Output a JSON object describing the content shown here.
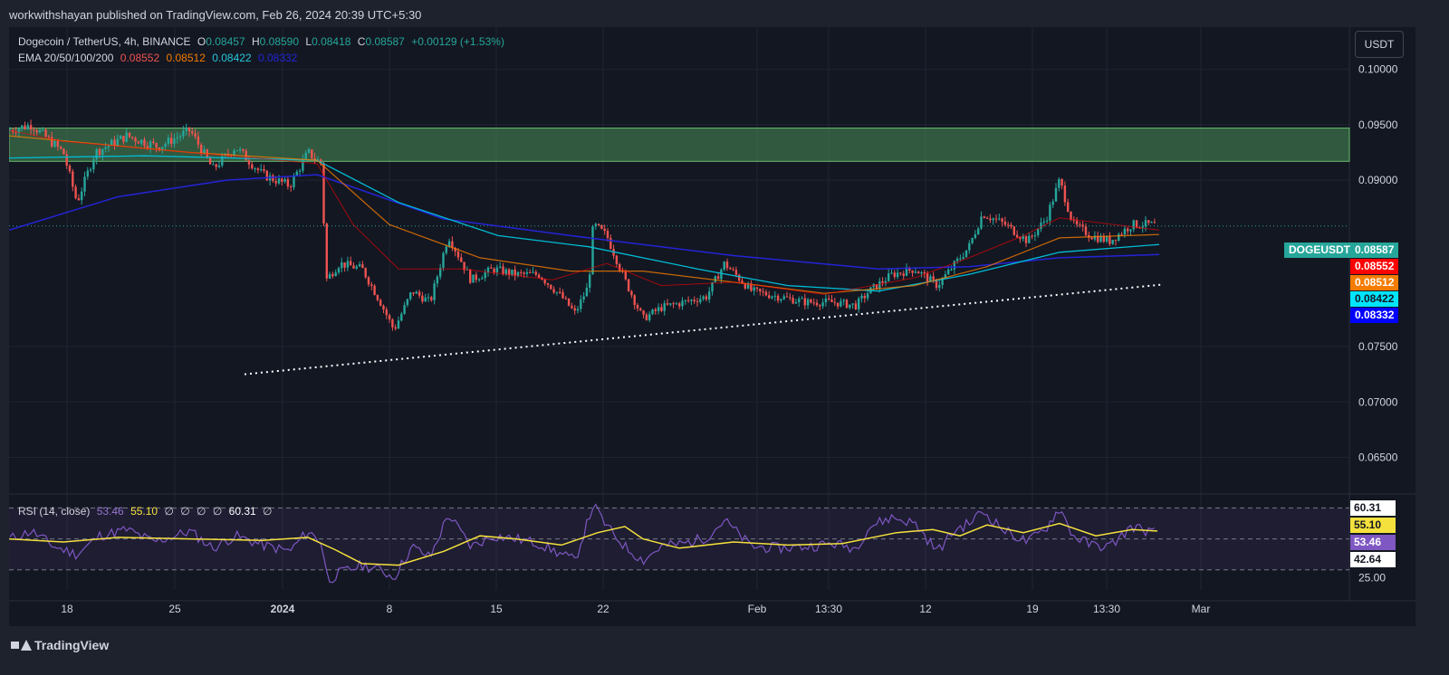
{
  "header": {
    "publisher_line": "workwithshayan published on TradingView.com, Feb 26, 2024 20:39 UTC+5:30"
  },
  "legend": {
    "symbol": "Dogecoin / TetherUS, 4h, BINANCE",
    "o_label": "O",
    "o": "0.08457",
    "h_label": "H",
    "h": "0.08590",
    "l_label": "L",
    "l": "0.08418",
    "c_label": "C",
    "c": "0.08587",
    "change": "+0.00129 (+1.53%)",
    "ema_label": "EMA 20/50/100/200",
    "ema20": "0.08552",
    "ema50": "0.08512",
    "ema100": "0.08422",
    "ema200": "0.08332"
  },
  "rsi_legend": {
    "label": "RSI (14, close)",
    "rsi": "53.46",
    "ma": "55.10",
    "nulls": [
      "∅",
      "∅",
      "∅",
      "∅"
    ],
    "upper": "60.31",
    "null_end": "∅"
  },
  "currency_button": "USDT",
  "symbol_tag": "DOGEUSDT",
  "price_tags": [
    {
      "text": "0.08587",
      "bg": "#26a69a",
      "fg": "#ffffff"
    },
    {
      "text": "0.08552",
      "bg": "#ff0000",
      "fg": "#ffffff"
    },
    {
      "text": "0.08512",
      "bg": "#f57c00",
      "fg": "#ffffff"
    },
    {
      "text": "0.08422",
      "bg": "#00e5ff",
      "fg": "#131722"
    },
    {
      "text": "0.08332",
      "bg": "#0000ff",
      "fg": "#ffffff"
    }
  ],
  "rsi_tags": [
    {
      "text": "60.31",
      "bg": "#ffffff",
      "fg": "#131722",
      "value": 60.31
    },
    {
      "text": "55.10",
      "bg": "#f5e13d",
      "fg": "#131722",
      "value": 55.1
    },
    {
      "text": "53.46",
      "bg": "#7e57c2",
      "fg": "#ffffff",
      "value": 53.46
    },
    {
      "text": "42.64",
      "bg": "#ffffff",
      "fg": "#131722",
      "value": 42.64
    }
  ],
  "footer": {
    "brand": "TradingView"
  },
  "colors": {
    "up": "#26a69a",
    "down": "#ef5350",
    "ema20": "#ff0000",
    "ema50": "#f57c00",
    "ema100": "#00bcd4",
    "ema200": "#2424d6",
    "rsi": "#7e57c2",
    "rsi_ma": "#f5e13d",
    "zone_fill": "#4a8f5a",
    "zone_border": "#66bb6a"
  },
  "chart_data": {
    "type": "candlestick",
    "timeframe": "4h",
    "price_axis_ticks": [
      "0.10000",
      "0.09500",
      "0.09000",
      "0.07500",
      "0.07000",
      "0.06500"
    ],
    "ylim": [
      0.0617,
      0.1038
    ],
    "time_axis_ticks": [
      "18",
      "25",
      "2024",
      "8",
      "15",
      "22",
      "Feb",
      "13:30",
      "12",
      "19",
      "13:30",
      "Mar"
    ],
    "price_path": [
      [
        0,
        0.0945
      ],
      [
        25,
        0.095
      ],
      [
        60,
        0.0925
      ],
      [
        75,
        0.088
      ],
      [
        95,
        0.0925
      ],
      [
        130,
        0.094
      ],
      [
        165,
        0.093
      ],
      [
        200,
        0.0945
      ],
      [
        225,
        0.091
      ],
      [
        250,
        0.093
      ],
      [
        280,
        0.0905
      ],
      [
        310,
        0.0895
      ],
      [
        330,
        0.0925
      ],
      [
        345,
        0.0915
      ],
      [
        350,
        0.081
      ],
      [
        365,
        0.0825
      ],
      [
        390,
        0.082
      ],
      [
        410,
        0.079
      ],
      [
        425,
        0.0765
      ],
      [
        445,
        0.08
      ],
      [
        465,
        0.079
      ],
      [
        485,
        0.085
      ],
      [
        510,
        0.081
      ],
      [
        535,
        0.082
      ],
      [
        560,
        0.0815
      ],
      [
        585,
        0.0815
      ],
      [
        610,
        0.0795
      ],
      [
        625,
        0.078
      ],
      [
        640,
        0.0805
      ],
      [
        645,
        0.086
      ],
      [
        660,
        0.085
      ],
      [
        680,
        0.081
      ],
      [
        700,
        0.0775
      ],
      [
        720,
        0.0785
      ],
      [
        745,
        0.079
      ],
      [
        770,
        0.0795
      ],
      [
        790,
        0.0825
      ],
      [
        820,
        0.08
      ],
      [
        850,
        0.0795
      ],
      [
        880,
        0.079
      ],
      [
        910,
        0.079
      ],
      [
        935,
        0.0787
      ],
      [
        950,
        0.08
      ],
      [
        975,
        0.0815
      ],
      [
        1000,
        0.082
      ],
      [
        1025,
        0.0805
      ],
      [
        1045,
        0.0825
      ],
      [
        1060,
        0.084
      ],
      [
        1075,
        0.087
      ],
      [
        1100,
        0.086
      ],
      [
        1125,
        0.0845
      ],
      [
        1145,
        0.0865
      ],
      [
        1160,
        0.09
      ],
      [
        1175,
        0.086
      ],
      [
        1195,
        0.085
      ],
      [
        1215,
        0.0845
      ],
      [
        1240,
        0.086
      ],
      [
        1258,
        0.086
      ],
      [
        1268,
        0.0859
      ]
    ],
    "ema20_path": [
      [
        0,
        0.0945
      ],
      [
        60,
        0.0935
      ],
      [
        200,
        0.0925
      ],
      [
        340,
        0.0915
      ],
      [
        380,
        0.086
      ],
      [
        430,
        0.082
      ],
      [
        500,
        0.082
      ],
      [
        600,
        0.081
      ],
      [
        660,
        0.0825
      ],
      [
        720,
        0.0805
      ],
      [
        800,
        0.0808
      ],
      [
        900,
        0.0797
      ],
      [
        1000,
        0.0812
      ],
      [
        1060,
        0.083
      ],
      [
        1120,
        0.085
      ],
      [
        1160,
        0.0866
      ],
      [
        1270,
        0.0855
      ]
    ],
    "ema50_path": [
      [
        0,
        0.094
      ],
      [
        200,
        0.0925
      ],
      [
        340,
        0.0918
      ],
      [
        420,
        0.086
      ],
      [
        520,
        0.083
      ],
      [
        620,
        0.0818
      ],
      [
        700,
        0.0818
      ],
      [
        800,
        0.0808
      ],
      [
        900,
        0.0798
      ],
      [
        1000,
        0.0805
      ],
      [
        1080,
        0.0822
      ],
      [
        1160,
        0.0848
      ],
      [
        1270,
        0.0851
      ]
    ],
    "ema100_path": [
      [
        0,
        0.092
      ],
      [
        150,
        0.0922
      ],
      [
        340,
        0.0918
      ],
      [
        430,
        0.088
      ],
      [
        540,
        0.085
      ],
      [
        640,
        0.084
      ],
      [
        760,
        0.082
      ],
      [
        860,
        0.0805
      ],
      [
        960,
        0.08
      ],
      [
        1060,
        0.0815
      ],
      [
        1160,
        0.0835
      ],
      [
        1270,
        0.0842
      ]
    ],
    "ema200_path": [
      [
        0,
        0.0855
      ],
      [
        120,
        0.0885
      ],
      [
        240,
        0.09
      ],
      [
        340,
        0.0905
      ],
      [
        480,
        0.0865
      ],
      [
        640,
        0.0848
      ],
      [
        800,
        0.0832
      ],
      [
        960,
        0.082
      ],
      [
        1060,
        0.0822
      ],
      [
        1160,
        0.083
      ],
      [
        1270,
        0.0833
      ]
    ],
    "resistance_zone": [
      0.0917,
      0.0947
    ],
    "trendline_points": [
      [
        260,
        0.0725
      ],
      [
        1275,
        0.0806
      ]
    ],
    "last_price_line": 0.08587,
    "rsi": {
      "ylim": [
        17.0,
        79.0
      ],
      "upper_band": 70,
      "middle_band": 50,
      "lower_band": 30,
      "axis_label": "25.00",
      "rsi_path": [
        [
          0,
          50
        ],
        [
          25,
          55
        ],
        [
          50,
          45
        ],
        [
          75,
          40
        ],
        [
          100,
          52
        ],
        [
          130,
          56
        ],
        [
          160,
          48
        ],
        [
          200,
          55
        ],
        [
          225,
          44
        ],
        [
          250,
          52
        ],
        [
          280,
          46
        ],
        [
          310,
          42
        ],
        [
          330,
          55
        ],
        [
          345,
          48
        ],
        [
          352,
          23
        ],
        [
          365,
          28
        ],
        [
          390,
          33
        ],
        [
          410,
          30
        ],
        [
          425,
          25
        ],
        [
          445,
          45
        ],
        [
          465,
          38
        ],
        [
          485,
          66
        ],
        [
          510,
          45
        ],
        [
          535,
          52
        ],
        [
          560,
          50
        ],
        [
          585,
          47
        ],
        [
          610,
          40
        ],
        [
          625,
          36
        ],
        [
          640,
          63
        ],
        [
          645,
          72
        ],
        [
          660,
          58
        ],
        [
          680,
          45
        ],
        [
          700,
          36
        ],
        [
          720,
          45
        ],
        [
          745,
          47
        ],
        [
          770,
          51
        ],
        [
          790,
          62
        ],
        [
          820,
          45
        ],
        [
          850,
          44
        ],
        [
          880,
          45
        ],
        [
          910,
          47
        ],
        [
          935,
          44
        ],
        [
          950,
          58
        ],
        [
          975,
          64
        ],
        [
          1000,
          60
        ],
        [
          1025,
          42
        ],
        [
          1045,
          56
        ],
        [
          1060,
          60
        ],
        [
          1075,
          68
        ],
        [
          1100,
          55
        ],
        [
          1125,
          48
        ],
        [
          1145,
          57
        ],
        [
          1160,
          70
        ],
        [
          1175,
          52
        ],
        [
          1195,
          46
        ],
        [
          1215,
          45
        ],
        [
          1240,
          58
        ],
        [
          1258,
          55
        ],
        [
          1268,
          53.46
        ]
      ],
      "ma_path": [
        [
          0,
          50
        ],
        [
          60,
          48
        ],
        [
          120,
          51
        ],
        [
          200,
          50
        ],
        [
          280,
          49
        ],
        [
          330,
          51
        ],
        [
          360,
          43
        ],
        [
          390,
          34
        ],
        [
          430,
          33
        ],
        [
          480,
          42
        ],
        [
          520,
          52
        ],
        [
          560,
          50
        ],
        [
          610,
          46
        ],
        [
          650,
          54
        ],
        [
          680,
          58
        ],
        [
          700,
          50
        ],
        [
          740,
          44
        ],
        [
          800,
          48
        ],
        [
          860,
          46
        ],
        [
          920,
          47
        ],
        [
          980,
          54
        ],
        [
          1020,
          56
        ],
        [
          1050,
          52
        ],
        [
          1080,
          59
        ],
        [
          1120,
          54
        ],
        [
          1160,
          60
        ],
        [
          1200,
          52
        ],
        [
          1240,
          56
        ],
        [
          1268,
          55.1
        ]
      ]
    }
  }
}
